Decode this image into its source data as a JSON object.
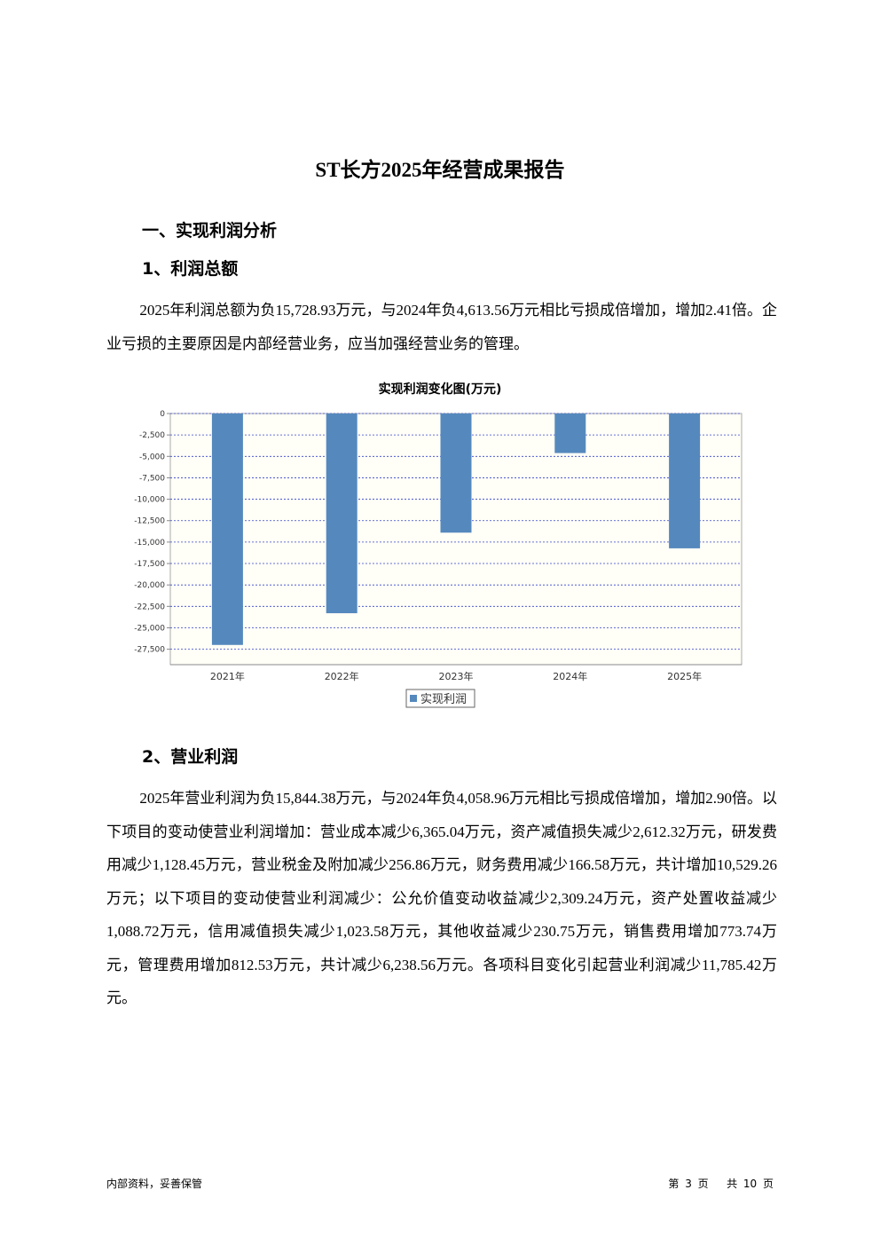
{
  "header": {
    "title": "ST长方2025年经营成果报告"
  },
  "section": {
    "heading": "一、实现利润分析"
  },
  "sub1": {
    "heading": "1、利润总额",
    "paragraph": "2025年利润总额为负15,728.93万元，与2024年负4,613.56万元相比亏损成倍增加，增加2.41倍。企业亏损的主要原因是内部经营业务，应当加强经营业务的管理。"
  },
  "chart_data": {
    "type": "bar",
    "title": "实现利润变化图(万元)",
    "categories": [
      "2021年",
      "2022年",
      "2023年",
      "2024年",
      "2025年"
    ],
    "series": [
      {
        "name": "实现利润",
        "color": "#5589bd",
        "values": [
          -27000,
          -23300,
          -13900,
          -4613.56,
          -15728.93
        ]
      }
    ],
    "ylim": [
      -29300,
      0
    ],
    "yticks": [
      0,
      {
        "value": -2500,
        "label": "-2,500"
      },
      {
        "value": -5000,
        "label": "-5,000"
      },
      {
        "value": -7500,
        "label": "-7,500"
      },
      {
        "value": -10000,
        "label": "-10,000"
      },
      {
        "value": -12500,
        "label": "-12,500"
      },
      {
        "value": -15000,
        "label": "-15,000"
      },
      {
        "value": -17500,
        "label": "-17,500"
      },
      {
        "value": -20000,
        "label": "-20,000"
      },
      {
        "value": -22500,
        "label": "-22,500"
      },
      {
        "value": -25000,
        "label": "-25,000"
      },
      {
        "value": -27500,
        "label": "-27,500"
      }
    ],
    "grid": true,
    "legend": "bottom"
  },
  "sub2": {
    "heading": "2、营业利润",
    "paragraph": "2025年营业利润为负15,844.38万元，与2024年负4,058.96万元相比亏损成倍增加，增加2.90倍。以下项目的变动使营业利润增加：营业成本减少6,365.04万元，资产减值损失减少2,612.32万元，研发费用减少1,128.45万元，营业税金及附加减少256.86万元，财务费用减少166.58万元，共计增加10,529.26万元；以下项目的变动使营业利润减少：公允价值变动收益减少2,309.24万元，资产处置收益减少1,088.72万元，信用减值损失减少1,023.58万元，其他收益减少230.75万元，销售费用增加773.74万元，管理费用增加812.53万元，共计减少6,238.56万元。各项科目变化引起营业利润减少11,785.42万元。"
  },
  "footer": {
    "left": "内部资料，妥善保管",
    "page": "第 3 页",
    "total": "共 10 页"
  }
}
